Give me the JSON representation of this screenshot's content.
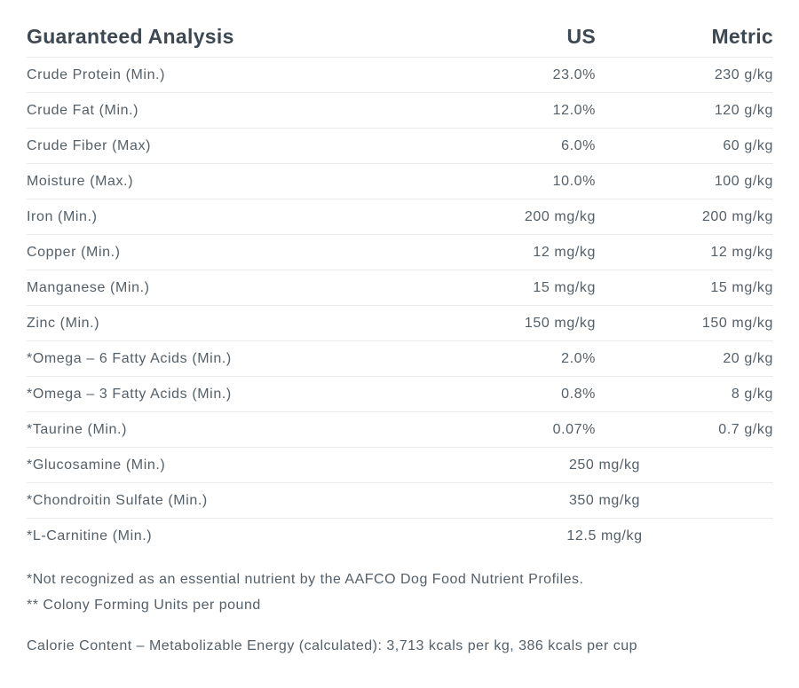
{
  "section": {
    "title": "Guaranteed Analysis",
    "columns": {
      "us": "US",
      "metric": "Metric"
    },
    "rows": [
      {
        "label": "Crude Protein (Min.)",
        "us": "23.0%",
        "metric": "230 g/kg"
      },
      {
        "label": "Crude Fat (Min.)",
        "us": "12.0%",
        "metric": "120 g/kg"
      },
      {
        "label": "Crude Fiber (Max)",
        "us": "6.0%",
        "metric": "60 g/kg"
      },
      {
        "label": "Moisture (Max.)",
        "us": "10.0%",
        "metric": "100 g/kg"
      },
      {
        "label": "Iron (Min.)",
        "us": "200 mg/kg",
        "metric": "200 mg/kg"
      },
      {
        "label": "Copper (Min.)",
        "us": "12 mg/kg",
        "metric": "12 mg/kg"
      },
      {
        "label": "Manganese (Min.)",
        "us": "15 mg/kg",
        "metric": "15 mg/kg"
      },
      {
        "label": "Zinc (Min.)",
        "us": "150 mg/kg",
        "metric": "150 mg/kg"
      },
      {
        "label": "*Omega – 6 Fatty Acids (Min.)",
        "us": "2.0%",
        "metric": "20 g/kg"
      },
      {
        "label": "*Omega – 3 Fatty Acids (Min.)",
        "us": "0.8%",
        "metric": "8 g/kg"
      },
      {
        "label": "*Taurine (Min.)",
        "us": "0.07%",
        "metric": "0.7 g/kg"
      },
      {
        "label": "*Glucosamine (Min.)",
        "us": "250 mg/kg",
        "metric": ""
      },
      {
        "label": "*Chondroitin Sulfate (Min.)",
        "us": "350 mg/kg",
        "metric": ""
      },
      {
        "label": "*L-Carnitine (Min.)",
        "us": "12.5 mg/kg",
        "metric": ""
      }
    ],
    "footnotes": [
      "*Not recognized as an essential nutrient by the AAFCO Dog Food Nutrient Profiles.",
      "** Colony Forming Units per pound"
    ],
    "calorie_content": "Calorie Content – Metabolizable Energy (calculated): 3,713 kcals per kg, 386 kcals per cup"
  },
  "colors": {
    "heading_text": "#3d4852",
    "body_text": "#535f69",
    "divider": "#e8eaeb",
    "background": "#ffffff"
  }
}
